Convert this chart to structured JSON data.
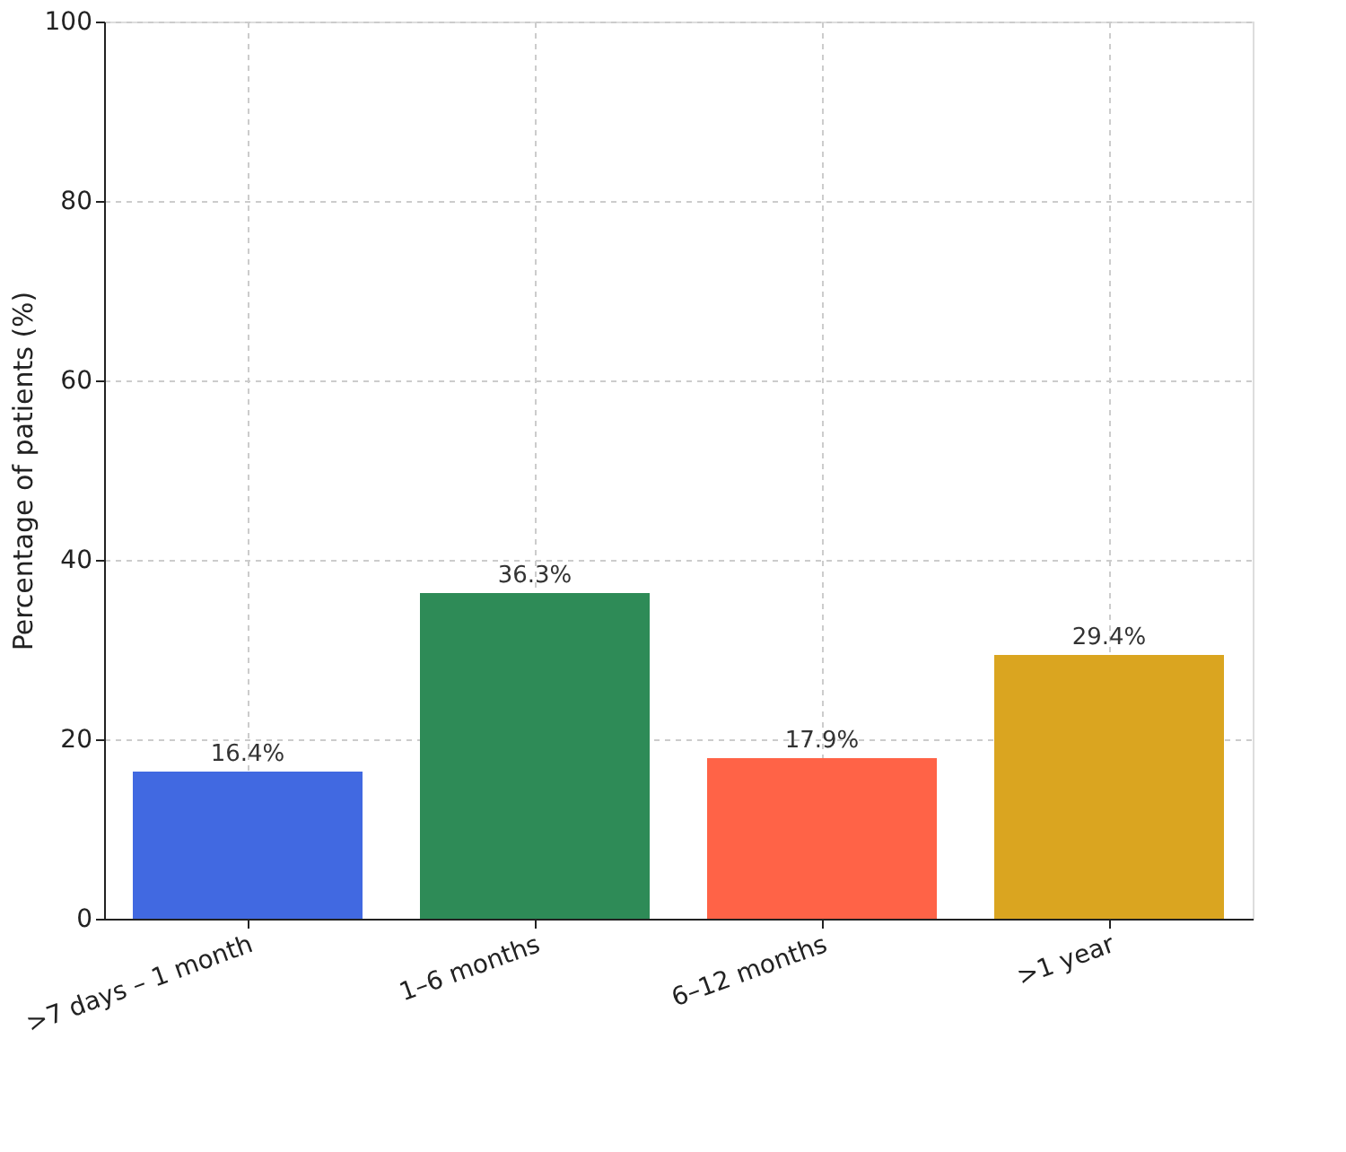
{
  "chart_data": {
    "type": "bar",
    "ylabel": "Percentage of patients (%)",
    "categories": [
      ">7 days – 1 month",
      "1–6 months",
      "6–12 months",
      ">1 year"
    ],
    "values": [
      16.4,
      36.3,
      17.9,
      29.4
    ],
    "colors": [
      "#4169e1",
      "#2e8b57",
      "#ff6347",
      "#daa520"
    ],
    "value_labels": [
      "16.4%",
      "36.3%",
      "17.9%",
      "29.4%"
    ],
    "ylim": [
      0,
      100
    ],
    "yticks": [
      0,
      20,
      40,
      60,
      80,
      100
    ],
    "grid": true,
    "legend": false
  }
}
